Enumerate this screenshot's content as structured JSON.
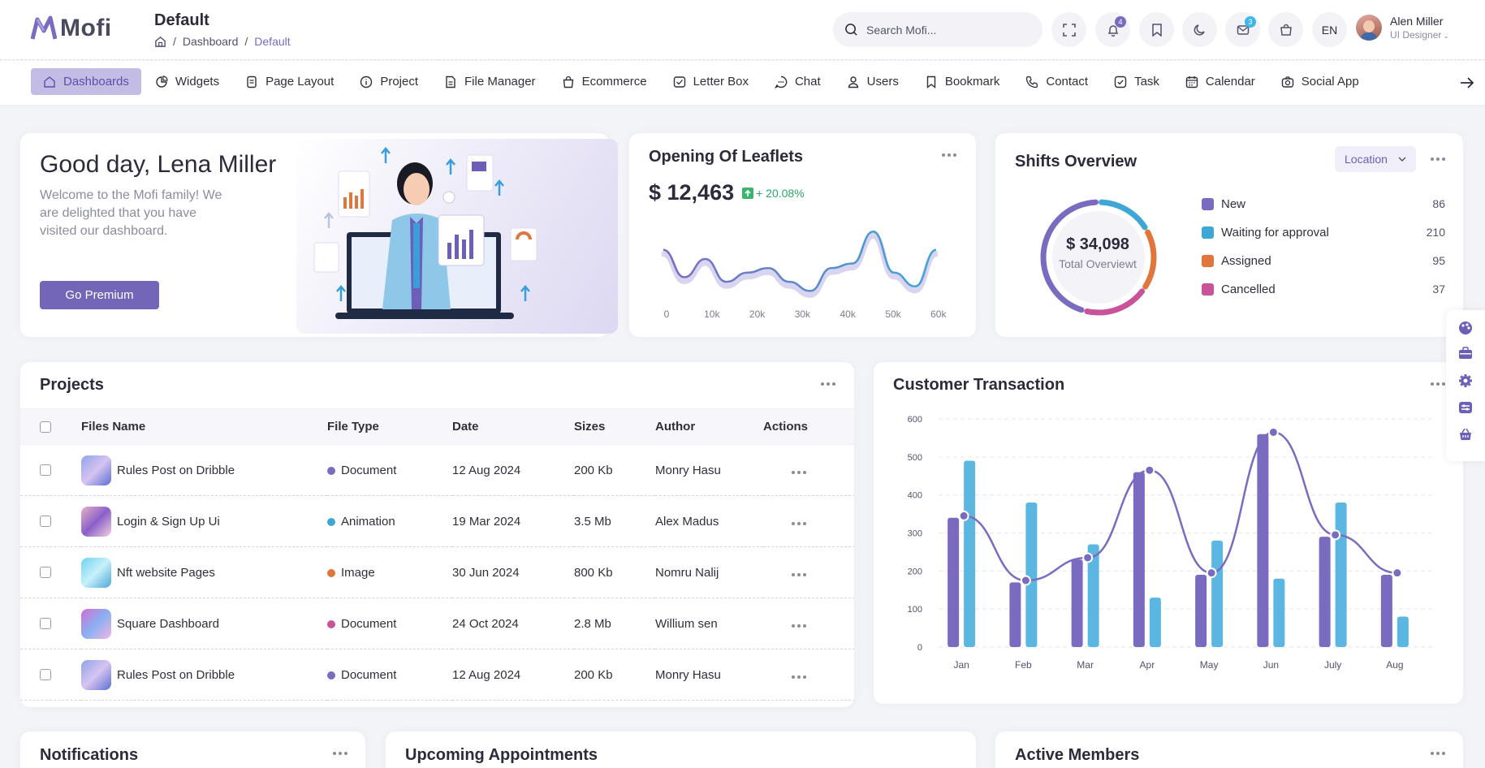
{
  "app": {
    "logo_text": "Mofi"
  },
  "header": {
    "title": "Default",
    "breadcrumb": [
      "Dashboard",
      "Default"
    ],
    "search_placeholder": "Search Mofi...",
    "notifications_count": "4",
    "messages_count": "3",
    "language": "EN",
    "user_name": "Alen Miller",
    "user_role": "UI Designer"
  },
  "nav": {
    "items": [
      {
        "label": "Dashboards",
        "icon": "home-icon"
      },
      {
        "label": "Widgets",
        "icon": "chart-pie-icon"
      },
      {
        "label": "Page Layout",
        "icon": "document-icon"
      },
      {
        "label": "Project",
        "icon": "info-circle-icon"
      },
      {
        "label": "File Manager",
        "icon": "file-icon"
      },
      {
        "label": "Ecommerce",
        "icon": "shopping-bag-icon"
      },
      {
        "label": "Letter Box",
        "icon": "mail-icon"
      },
      {
        "label": "Chat",
        "icon": "chat-icon"
      },
      {
        "label": "Users",
        "icon": "user-icon"
      },
      {
        "label": "Bookmark",
        "icon": "bookmark-icon"
      },
      {
        "label": "Contact",
        "icon": "phone-icon"
      },
      {
        "label": "Task",
        "icon": "check-square-icon"
      },
      {
        "label": "Calendar",
        "icon": "calendar-icon"
      },
      {
        "label": "Social App",
        "icon": "camera-icon"
      }
    ]
  },
  "welcome": {
    "title": "Good day, Lena Miller",
    "subtitle": "Welcome to the Mofi family! We are delighted that you have visited our dashboard.",
    "button": "Go Premium"
  },
  "leaflets": {
    "title": "Opening Of Leaflets",
    "amount": "$ 12,463",
    "change": "+ 20.08%",
    "x_labels": [
      "0",
      "10k",
      "20k",
      "30k",
      "40k",
      "50k",
      "60k"
    ],
    "sparkline": [
      10,
      4,
      8,
      3,
      5,
      6,
      3,
      1,
      6,
      7,
      14,
      5,
      2,
      10
    ]
  },
  "shifts": {
    "title": "Shifts Overview",
    "filter": "Location",
    "total": "$ 34,098",
    "total_label": "Total Overviewt",
    "legend": [
      {
        "name": "New",
        "count": "86",
        "color": "#7a6bc0"
      },
      {
        "name": "Waiting for approval",
        "count": "210",
        "color": "#3fa7d6"
      },
      {
        "name": "Assigned",
        "count": "95",
        "color": "#e0763c"
      },
      {
        "name": "Cancelled",
        "count": "37",
        "color": "#c9539b"
      }
    ]
  },
  "projects": {
    "title": "Projects",
    "columns": [
      "Files Name",
      "File Type",
      "Date",
      "Sizes",
      "Author",
      "Actions"
    ],
    "rows": [
      {
        "name": "Rules Post on Dribble",
        "type": "Document",
        "type_color": "#7a6bc0",
        "date": "12 Aug 2024",
        "size": "200 Kb",
        "author": "Monry Hasu",
        "thumb": "linear-gradient(135deg,#8fa3e8,#d6c4f2,#5b6fd0)"
      },
      {
        "name": "Login & Sign Up Ui",
        "type": "Animation",
        "type_color": "#3fa7d6",
        "date": "19 Mar 2024",
        "size": "3.5 Mb",
        "author": "Alex Madus",
        "thumb": "linear-gradient(135deg,#e9b2c7,#8a5fc9,#f0d2e0)"
      },
      {
        "name": "Nft website Pages",
        "type": "Image",
        "type_color": "#e0763c",
        "date": "30 Jun 2024",
        "size": "800 Kb",
        "author": "Nomru Nalij",
        "thumb": "linear-gradient(135deg,#6fd3ef,#c7f0fb,#4aa7d8)"
      },
      {
        "name": "Square Dashboard",
        "type": "Document",
        "type_color": "#c9539b",
        "date": "24 Oct 2024",
        "size": "2.8 Mb",
        "author": "Willium sen",
        "thumb": "linear-gradient(135deg,#d36dd0,#8ab0f2,#f2b5e3)"
      },
      {
        "name": "Rules Post on Dribble",
        "type": "Document",
        "type_color": "#7a6bc0",
        "date": "12 Aug 2024",
        "size": "200 Kb",
        "author": "Monry Hasu",
        "thumb": "linear-gradient(135deg,#8fa3e8,#d6c4f2,#5b6fd0)"
      }
    ]
  },
  "transaction": {
    "title": "Customer Transaction"
  },
  "bottom": {
    "notifications": "Notifications",
    "appointments": "Upcoming Appointments",
    "members": "Active Members"
  },
  "chart_data": {
    "type": "bar",
    "title": "Customer Transaction",
    "categories": [
      "Jan",
      "Feb",
      "Mar",
      "Apr",
      "May",
      "Jun",
      "July",
      "Aug"
    ],
    "ylim": [
      0,
      600
    ],
    "yticks": [
      "0",
      "100",
      "200",
      "300",
      "400",
      "500",
      "600"
    ],
    "series": [
      {
        "values": [
          340,
          170,
          230,
          460,
          190,
          560,
          290,
          190
        ],
        "color": "#7a6bc0"
      },
      {
        "values": [
          490,
          380,
          270,
          130,
          280,
          180,
          380,
          80
        ],
        "color": "#5bb7e2"
      }
    ],
    "line": {
      "values": [
        345,
        175,
        235,
        465,
        195,
        565,
        295,
        195
      ],
      "color": "#7a6bc0"
    },
    "grid": true
  }
}
